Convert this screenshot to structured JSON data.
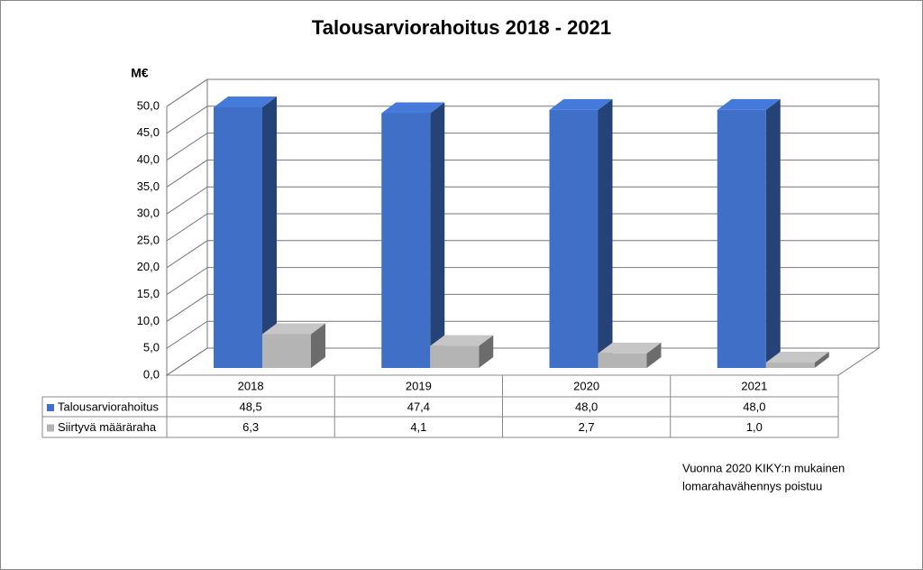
{
  "chart_data": {
    "type": "bar3d",
    "title": "Talousarviorahoitus 2018 - 2021",
    "y_label": "M€",
    "categories": [
      "2018",
      "2019",
      "2020",
      "2021"
    ],
    "series": [
      {
        "name": "Talousarviorahoitus",
        "color": "#3f6fc6",
        "values": [
          48.5,
          47.4,
          48.0,
          48.0
        ],
        "value_labels": [
          "48,5",
          "47,4",
          "48,0",
          "48,0"
        ]
      },
      {
        "name": "Siirtyvä määräraha",
        "color": "#b4b4b4",
        "values": [
          6.3,
          4.1,
          2.7,
          1.0
        ],
        "value_labels": [
          "6,3",
          "4,1",
          "2,7",
          "1,0"
        ]
      }
    ],
    "ylim": [
      0,
      50
    ],
    "yticks": [
      {
        "value": 0,
        "label": "0,0"
      },
      {
        "value": 5,
        "label": "5,0"
      },
      {
        "value": 10,
        "label": "10,0"
      },
      {
        "value": 15,
        "label": "15,0"
      },
      {
        "value": 20,
        "label": "20,0"
      },
      {
        "value": 25,
        "label": "25,0"
      },
      {
        "value": 30,
        "label": "30,0"
      },
      {
        "value": 35,
        "label": "35,0"
      },
      {
        "value": 40,
        "label": "40,0"
      },
      {
        "value": 45,
        "label": "45,0"
      },
      {
        "value": 50,
        "label": "50,0"
      }
    ],
    "grid": true,
    "annotations": [
      "Vuonna 2020 KIKY:n mukainen",
      "lomarahavähennys poistuu"
    ]
  }
}
